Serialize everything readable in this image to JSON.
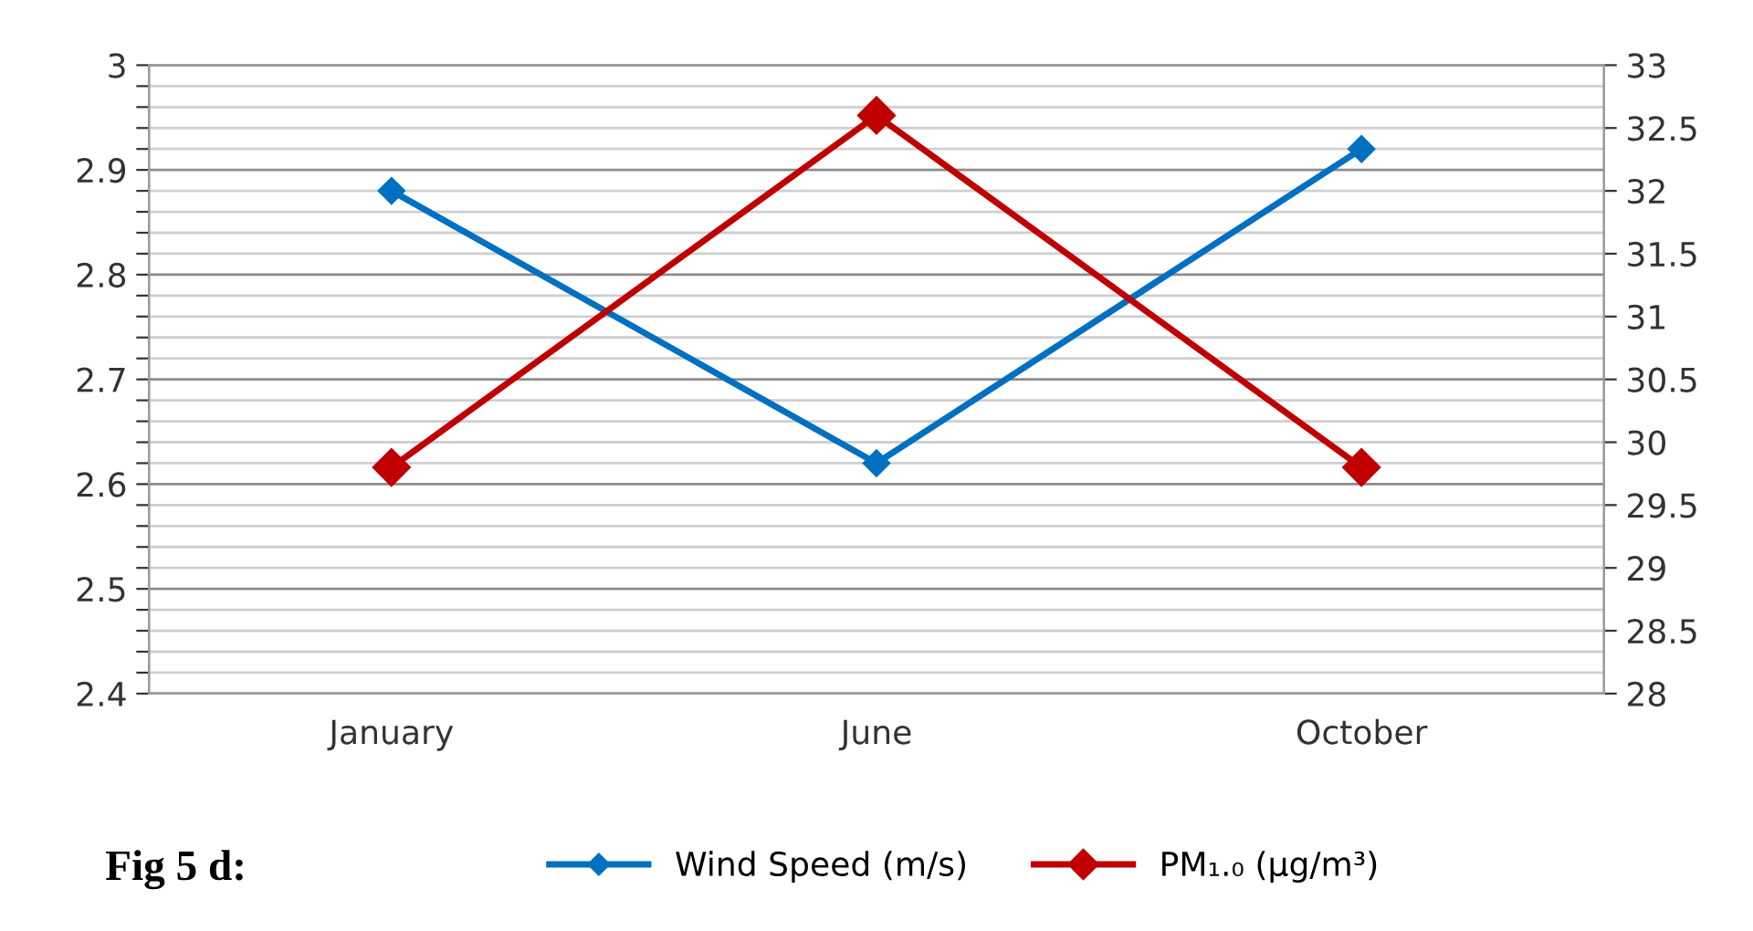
{
  "chart_data": {
    "type": "line",
    "categories": [
      "January",
      "June",
      "October"
    ],
    "series": [
      {
        "name": "Wind Speed (m/s)",
        "color": "#0070c0",
        "values": [
          2.88,
          2.62,
          2.92
        ]
      },
      {
        "name": "PM₁.₀ (µg/m³)",
        "color": "#c00000",
        "values": [
          29.8,
          32.6,
          29.8
        ],
        "axis": "y2"
      }
    ],
    "ylim": [
      2.4,
      3
    ],
    "yticks": [
      2.4,
      {
        "value": 2.42,
        "label": null
      },
      {
        "value": 2.44,
        "label": null
      },
      {
        "value": 2.46,
        "label": null
      },
      {
        "value": 2.48,
        "label": null
      },
      2.5,
      {
        "value": 2.52,
        "label": null
      },
      {
        "value": 2.54,
        "label": null
      },
      {
        "value": 2.56,
        "label": null
      },
      {
        "value": 2.58,
        "label": null
      },
      2.6,
      {
        "value": 2.62,
        "label": null
      },
      {
        "value": 2.64,
        "label": null
      },
      {
        "value": 2.66,
        "label": null
      },
      {
        "value": 2.68,
        "label": null
      },
      2.7,
      {
        "value": 2.72,
        "label": null
      },
      {
        "value": 2.74,
        "label": null
      },
      {
        "value": 2.76,
        "label": null
      },
      {
        "value": 2.78,
        "label": null
      },
      2.8,
      {
        "value": 2.82,
        "label": null
      },
      {
        "value": 2.84,
        "label": null
      },
      {
        "value": 2.86,
        "label": null
      },
      {
        "value": 2.88,
        "label": null
      },
      2.9,
      {
        "value": 2.92,
        "label": null
      },
      {
        "value": 2.94,
        "label": null
      },
      {
        "value": 2.96,
        "label": null
      },
      {
        "value": 2.98,
        "label": null
      },
      3
    ],
    "y2lim": [
      28,
      33
    ],
    "y2ticks": [
      28,
      28.5,
      29,
      29.5,
      30,
      30.5,
      31,
      31.5,
      32,
      32.5,
      33
    ],
    "grid": "y",
    "legend": "bottom",
    "marker": "diamond",
    "line_style": "solid",
    "annotations": [
      "Fig 5 d:"
    ]
  }
}
